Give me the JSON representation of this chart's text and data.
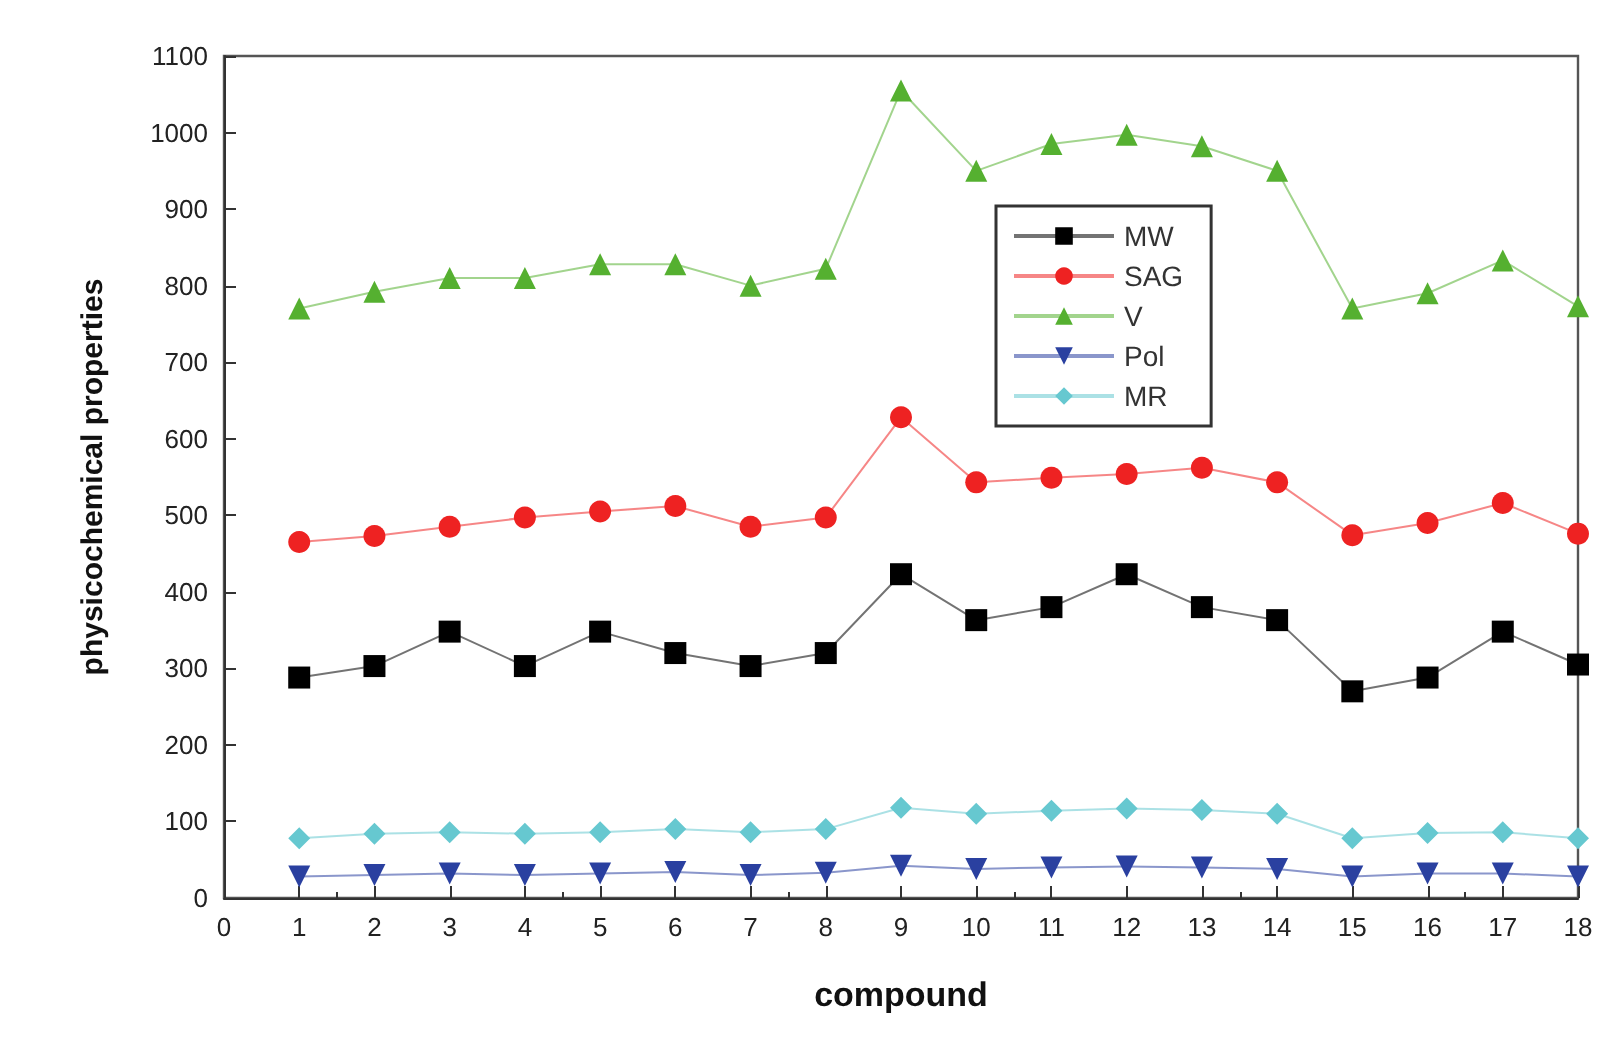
{
  "chart_data": {
    "type": "line",
    "xlabel": "compound",
    "ylabel": "physicochemical properties",
    "x": [
      1,
      2,
      3,
      4,
      5,
      6,
      7,
      8,
      9,
      10,
      11,
      12,
      13,
      14,
      15,
      16,
      17,
      18
    ],
    "xlim": [
      0,
      18
    ],
    "xticks": [
      0,
      1,
      2,
      3,
      4,
      5,
      6,
      7,
      8,
      9,
      10,
      11,
      12,
      13,
      14,
      15,
      16,
      17,
      18
    ],
    "ylim": [
      0,
      1100
    ],
    "yticks": [
      0,
      100,
      200,
      300,
      400,
      500,
      600,
      700,
      800,
      900,
      1000,
      1100
    ],
    "grid": false,
    "legend": "top right",
    "line_style": "solid",
    "series": [
      {
        "name": "MW",
        "color": "#000000",
        "marker": "square",
        "values": [
          288,
          303,
          348,
          303,
          348,
          320,
          303,
          320,
          423,
          363,
          380,
          423,
          380,
          363,
          270,
          288,
          348,
          305
        ]
      },
      {
        "name": "SAG",
        "color": "#ee2222",
        "marker": "circle",
        "values": [
          465,
          473,
          485,
          497,
          505,
          512,
          485,
          497,
          628,
          543,
          549,
          554,
          562,
          543,
          474,
          490,
          516,
          476
        ]
      },
      {
        "name": "V",
        "color": "#55b030",
        "marker": "triangle",
        "values": [
          770,
          792,
          810,
          810,
          828,
          828,
          800,
          822,
          1055,
          950,
          985,
          997,
          982,
          950,
          770,
          790,
          833,
          773
        ]
      },
      {
        "name": "Pol",
        "color": "#2a40a0",
        "marker": "triangle-down",
        "values": [
          28,
          30,
          32,
          30,
          32,
          34,
          30,
          33,
          42,
          38,
          40,
          41,
          40,
          38,
          28,
          32,
          32,
          28
        ]
      },
      {
        "name": "MR",
        "color": "#66c8d0",
        "marker": "diamond",
        "values": [
          78,
          84,
          86,
          84,
          86,
          90,
          86,
          90,
          118,
          110,
          114,
          117,
          115,
          110,
          78,
          85,
          86,
          78
        ]
      }
    ]
  }
}
